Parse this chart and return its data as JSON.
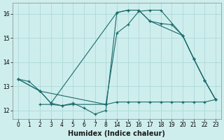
{
  "xlabel": "Humidex (Indice chaleur)",
  "background_color": "#ceeeed",
  "grid_color": "#aed8d8",
  "line_color": "#1a6b6b",
  "xtick_labels": [
    "0",
    "1",
    "2",
    "3",
    "4",
    "5",
    "6",
    "7",
    "8",
    "14",
    "15",
    "16",
    "17",
    "18",
    "19",
    "20",
    "21",
    "22",
    "23"
  ],
  "line1_pos": [
    0,
    1,
    2,
    3,
    4,
    5,
    6,
    7,
    8,
    9,
    10,
    11,
    12,
    13,
    14,
    15,
    16,
    17,
    18
  ],
  "line1_y": [
    13.3,
    13.2,
    12.8,
    12.3,
    12.2,
    12.3,
    12.1,
    11.85,
    12.0,
    16.05,
    16.15,
    16.15,
    15.7,
    15.6,
    15.55,
    15.1,
    14.15,
    13.25,
    12.45
  ],
  "line2_pos": [
    0,
    2,
    3,
    9,
    10,
    11,
    12,
    15,
    16,
    17,
    18
  ],
  "line2_y": [
    13.3,
    12.8,
    12.3,
    16.05,
    16.15,
    16.15,
    15.7,
    15.1,
    14.15,
    13.25,
    12.45
  ],
  "line3_pos": [
    0,
    2,
    8,
    9,
    10,
    11,
    12,
    13,
    15,
    16,
    17,
    18
  ],
  "line3_y": [
    13.3,
    12.8,
    12.25,
    15.2,
    15.55,
    16.1,
    16.15,
    16.15,
    15.1,
    14.15,
    13.25,
    12.45
  ],
  "line4_pos": [
    2,
    3,
    4,
    5,
    8,
    9,
    10,
    11,
    12,
    13,
    14,
    15,
    16,
    17,
    18
  ],
  "line4_y": [
    12.25,
    12.25,
    12.2,
    12.25,
    12.25,
    12.35,
    12.35,
    12.35,
    12.35,
    12.35,
    12.35,
    12.35,
    12.35,
    12.35,
    12.45
  ],
  "ylim": [
    11.65,
    16.45
  ],
  "xlim": [
    -0.5,
    18.5
  ],
  "yticks": [
    12,
    13,
    14,
    15,
    16
  ]
}
